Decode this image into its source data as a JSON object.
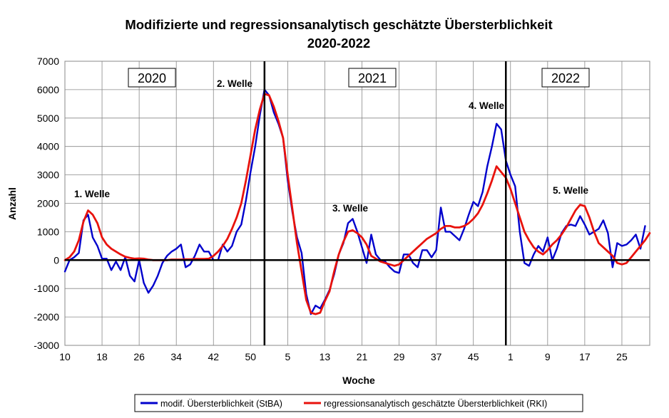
{
  "chart_data": {
    "type": "line",
    "title": "Modifizierte und regressionsanalytisch geschätzte Übersterblichkeit",
    "subtitle": "2020-2022",
    "xlabel": "Woche",
    "ylabel": "Anzahl",
    "ylim": [
      -3000,
      7000
    ],
    "yticks": [
      -3000,
      -2000,
      -1000,
      0,
      1000,
      2000,
      3000,
      4000,
      5000,
      6000,
      7000
    ],
    "xtick_labels": [
      "10",
      "18",
      "26",
      "34",
      "42",
      "50",
      "5",
      "13",
      "21",
      "29",
      "37",
      "45",
      "1",
      "9",
      "17",
      "25"
    ],
    "grid": true,
    "legend_position": "bottom",
    "year_labels": [
      "2020",
      "2021",
      "2022"
    ],
    "annotations": [
      "1.  Welle",
      "2.  Welle",
      "3.  Welle",
      "4.  Welle",
      "5.  Welle"
    ],
    "colors": {
      "StBA": "#0000cc",
      "RKI": "#e8120c"
    },
    "series": [
      {
        "name": "modif. Übersterblichkeit (StBA)",
        "values": [
          -400,
          0,
          100,
          250,
          1400,
          1600,
          800,
          500,
          50,
          50,
          -350,
          -50,
          -350,
          100,
          -550,
          -750,
          0,
          -800,
          -1150,
          -900,
          -550,
          -100,
          150,
          300,
          400,
          550,
          -250,
          -150,
          150,
          550,
          300,
          300,
          0,
          0,
          550,
          300,
          500,
          1000,
          1250,
          2100,
          3100,
          4000,
          5100,
          6000,
          5800,
          5200,
          4800,
          4300,
          2800,
          1700,
          800,
          250,
          -1200,
          -1900,
          -1600,
          -1700,
          -1400,
          -1050,
          -500,
          200,
          600,
          1300,
          1450,
          1000,
          450,
          -100,
          900,
          200,
          0,
          -50,
          -250,
          -400,
          -450,
          200,
          200,
          -100,
          -250,
          350,
          350,
          100,
          350,
          1850,
          1000,
          1000,
          850,
          700,
          1100,
          1600,
          2050,
          1900,
          2400,
          3300,
          4000,
          4800,
          4600,
          3500,
          3000,
          2600,
          1000,
          -100,
          -200,
          200,
          500,
          300,
          800,
          0,
          400,
          950,
          1200,
          1250,
          1200,
          1550,
          1250,
          900,
          1000,
          1100,
          1400,
          950,
          -250,
          600,
          500,
          550,
          700,
          900,
          400,
          1200
        ]
      },
      {
        "name": "regressionsanalytisch geschätzte Übersterblichkeit (RKI)",
        "values": [
          0,
          100,
          300,
          700,
          1350,
          1750,
          1600,
          1300,
          800,
          550,
          400,
          300,
          200,
          120,
          80,
          50,
          60,
          50,
          20,
          0,
          0,
          0,
          0,
          20,
          20,
          20,
          30,
          30,
          40,
          40,
          40,
          50,
          150,
          300,
          500,
          750,
          1100,
          1500,
          2000,
          2800,
          3700,
          4600,
          5300,
          5850,
          5800,
          5400,
          4900,
          4300,
          3000,
          1800,
          600,
          -400,
          -1400,
          -1850,
          -1900,
          -1850,
          -1450,
          -1100,
          -400,
          200,
          650,
          1000,
          1050,
          950,
          800,
          550,
          150,
          50,
          -50,
          -100,
          -150,
          -200,
          -150,
          0,
          150,
          300,
          450,
          600,
          750,
          850,
          950,
          1100,
          1200,
          1200,
          1150,
          1150,
          1200,
          1300,
          1450,
          1650,
          1950,
          2350,
          2800,
          3300,
          3100,
          2900,
          2500,
          2000,
          1500,
          1000,
          700,
          450,
          300,
          200,
          350,
          550,
          700,
          900,
          1150,
          1450,
          1750,
          1950,
          1900,
          1500,
          1000,
          600,
          450,
          300,
          150,
          -100,
          -150,
          -100,
          100,
          300,
          500,
          700,
          950
        ]
      }
    ]
  }
}
